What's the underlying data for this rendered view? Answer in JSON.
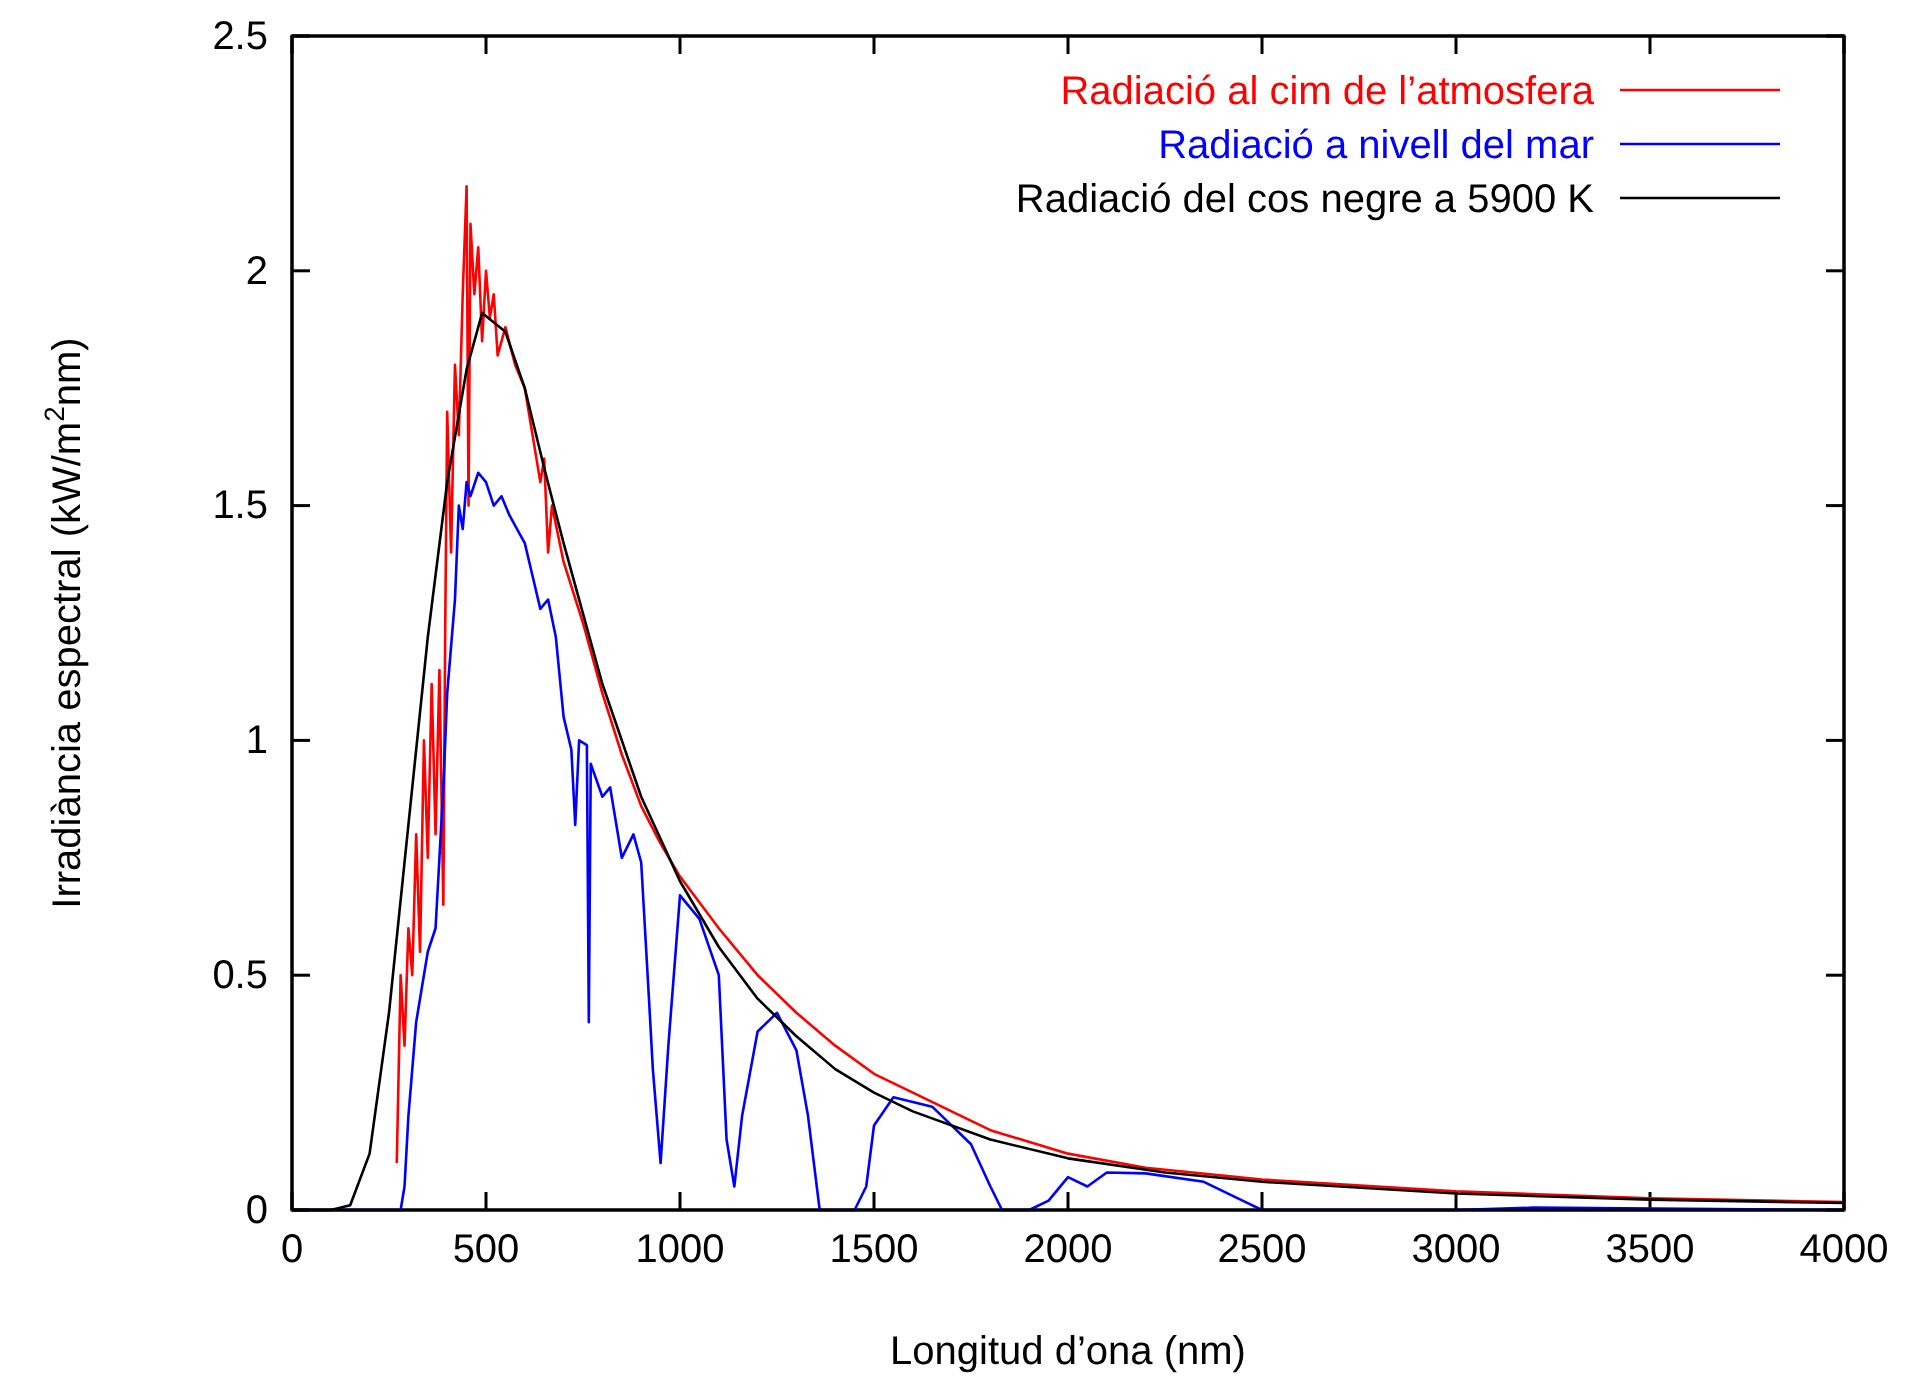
{
  "chart_data": {
    "type": "line",
    "xlabel": "Longitud d’ona (nm)",
    "ylabel": "Irradiància espectral (kW/m$^{2}$nm)",
    "xlim": [
      0,
      4000
    ],
    "xticks": [
      0,
      500,
      1000,
      1500,
      2000,
      2500,
      3000,
      3500,
      4000
    ],
    "ylim": [
      0,
      2.5
    ],
    "yticks": [
      0,
      0.5,
      1,
      1.5,
      2,
      2.5
    ],
    "grid": false,
    "legend": "top right",
    "marker": "none",
    "line_style": "solid",
    "series": [
      {
        "name": "Radiació al cim de l’atmosfera",
        "color": "#ff0000",
        "x": [
          270,
          280,
          290,
          300,
          310,
          320,
          330,
          340,
          350,
          360,
          370,
          380,
          390,
          395,
          400,
          410,
          420,
          430,
          440,
          450,
          455,
          460,
          470,
          480,
          490,
          500,
          510,
          520,
          530,
          550,
          575,
          600,
          620,
          640,
          650,
          660,
          670,
          700,
          750,
          800,
          850,
          900,
          950,
          1000,
          1100,
          1200,
          1300,
          1400,
          1500,
          1600,
          1700,
          1800,
          2000,
          2200,
          2500,
          3000,
          3500,
          4000
        ],
        "values": [
          0.1,
          0.5,
          0.35,
          0.6,
          0.5,
          0.8,
          0.55,
          1.0,
          0.75,
          1.12,
          0.8,
          1.15,
          0.65,
          1.25,
          1.7,
          1.4,
          1.8,
          1.65,
          1.95,
          2.18,
          1.5,
          2.1,
          1.95,
          2.05,
          1.85,
          2.0,
          1.9,
          1.95,
          1.82,
          1.88,
          1.8,
          1.75,
          1.65,
          1.55,
          1.6,
          1.4,
          1.5,
          1.38,
          1.25,
          1.1,
          0.97,
          0.86,
          0.78,
          0.71,
          0.6,
          0.5,
          0.42,
          0.35,
          0.29,
          0.25,
          0.21,
          0.17,
          0.12,
          0.09,
          0.065,
          0.04,
          0.025,
          0.017
        ]
      },
      {
        "name": "Radiació a nivell del mar",
        "color": "#0000ff",
        "x": [
          0,
          280,
          290,
          300,
          310,
          320,
          330,
          340,
          350,
          370,
          380,
          390,
          400,
          410,
          420,
          430,
          440,
          450,
          460,
          480,
          500,
          520,
          540,
          560,
          580,
          600,
          620,
          640,
          660,
          680,
          700,
          720,
          730,
          740,
          760,
          765,
          770,
          800,
          820,
          850,
          880,
          900,
          920,
          930,
          950,
          970,
          1000,
          1050,
          1100,
          1120,
          1140,
          1160,
          1200,
          1250,
          1300,
          1330,
          1360,
          1450,
          1480,
          1500,
          1550,
          1650,
          1750,
          1800,
          1830,
          1900,
          1950,
          2000,
          2050,
          2100,
          2200,
          2350,
          2450,
          2500,
          3000,
          3200,
          4000
        ],
        "values": [
          0,
          0,
          0.05,
          0.2,
          0.3,
          0.4,
          0.45,
          0.5,
          0.55,
          0.6,
          0.75,
          0.9,
          1.1,
          1.2,
          1.3,
          1.5,
          1.45,
          1.55,
          1.52,
          1.57,
          1.55,
          1.5,
          1.52,
          1.48,
          1.45,
          1.42,
          1.35,
          1.28,
          1.3,
          1.22,
          1.05,
          0.98,
          0.82,
          1.0,
          0.99,
          0.4,
          0.95,
          0.88,
          0.9,
          0.75,
          0.8,
          0.74,
          0.45,
          0.3,
          0.1,
          0.35,
          0.67,
          0.62,
          0.5,
          0.15,
          0.05,
          0.2,
          0.38,
          0.42,
          0.34,
          0.2,
          0,
          0,
          0.05,
          0.18,
          0.24,
          0.22,
          0.14,
          0.05,
          0,
          0,
          0.02,
          0.07,
          0.05,
          0.08,
          0.078,
          0.06,
          0.02,
          0,
          0,
          0.005,
          0
        ]
      },
      {
        "name": "Radiació del cos negre a 5900 K",
        "color": "#000000",
        "x": [
          0,
          100,
          150,
          200,
          250,
          300,
          350,
          400,
          450,
          490,
          550,
          600,
          650,
          700,
          800,
          900,
          1000,
          1100,
          1200,
          1300,
          1400,
          1500,
          1600,
          1800,
          2000,
          2250,
          2500,
          3000,
          3500,
          4000
        ],
        "values": [
          0,
          0,
          0.01,
          0.12,
          0.42,
          0.82,
          1.22,
          1.55,
          1.79,
          1.91,
          1.87,
          1.75,
          1.58,
          1.42,
          1.12,
          0.88,
          0.7,
          0.56,
          0.45,
          0.37,
          0.3,
          0.25,
          0.21,
          0.15,
          0.11,
          0.08,
          0.06,
          0.035,
          0.022,
          0.015
        ]
      }
    ]
  }
}
